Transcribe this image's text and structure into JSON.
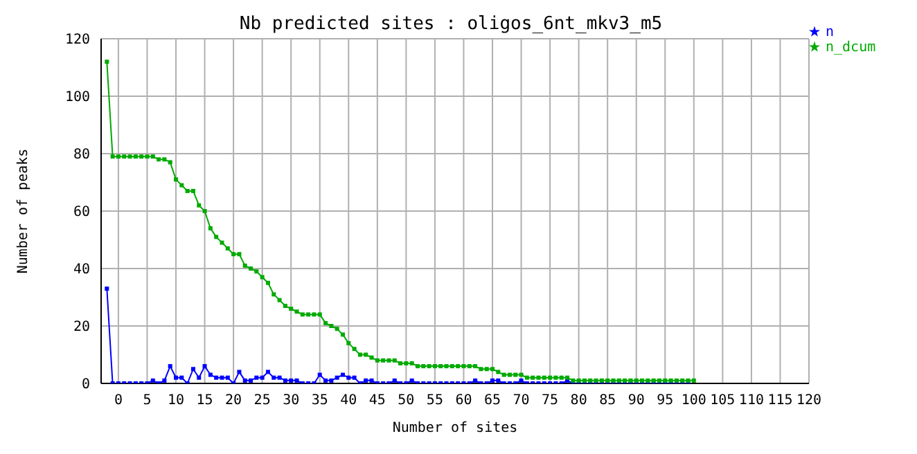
{
  "chart_data": {
    "type": "line",
    "title": "Nb predicted sites : oligos_6nt_mkv3_m5",
    "xlabel": "Number of sites",
    "ylabel": "Number of peaks",
    "x": [
      -2,
      -1,
      0,
      1,
      2,
      3,
      4,
      5,
      6,
      7,
      8,
      9,
      10,
      11,
      12,
      13,
      14,
      15,
      16,
      17,
      18,
      19,
      20,
      21,
      22,
      23,
      24,
      25,
      26,
      27,
      28,
      29,
      30,
      31,
      32,
      33,
      34,
      35,
      36,
      37,
      38,
      39,
      40,
      41,
      42,
      43,
      44,
      45,
      46,
      47,
      48,
      49,
      50,
      51,
      52,
      53,
      54,
      55,
      56,
      57,
      58,
      59,
      60,
      61,
      62,
      63,
      64,
      65,
      66,
      67,
      68,
      69,
      70,
      71,
      72,
      73,
      74,
      75,
      76,
      77,
      78,
      79,
      80,
      81,
      82,
      83,
      84,
      85,
      86,
      87,
      88,
      89,
      90,
      91,
      92,
      93,
      94,
      95,
      96,
      97,
      98,
      99,
      100
    ],
    "series": [
      {
        "name": "n",
        "color": "#0000ff",
        "values": [
          33,
          0,
          0,
          0,
          0,
          0,
          0,
          0,
          1,
          0,
          1,
          6,
          2,
          2,
          0,
          5,
          2,
          6,
          3,
          2,
          2,
          2,
          0,
          4,
          1,
          1,
          2,
          2,
          4,
          2,
          2,
          1,
          1,
          1,
          0,
          0,
          0,
          3,
          1,
          1,
          2,
          3,
          2,
          2,
          0,
          1,
          1,
          0,
          0,
          0,
          1,
          0,
          0,
          1,
          0,
          0,
          0,
          0,
          0,
          0,
          0,
          0,
          0,
          0,
          1,
          0,
          0,
          1,
          1,
          0,
          0,
          0,
          1,
          0,
          0,
          0,
          0,
          0,
          0,
          0,
          1,
          0,
          0,
          0,
          0,
          0,
          0,
          0,
          0,
          0,
          0,
          0,
          0,
          0,
          0,
          0,
          0,
          0,
          0,
          0,
          0,
          0,
          null
        ]
      },
      {
        "name": "n_dcum",
        "color": "#00aa00",
        "values": [
          112,
          79,
          79,
          79,
          79,
          79,
          79,
          79,
          79,
          78,
          78,
          77,
          71,
          69,
          67,
          67,
          62,
          60,
          54,
          51,
          49,
          47,
          45,
          45,
          41,
          40,
          39,
          37,
          35,
          31,
          29,
          27,
          26,
          25,
          24,
          24,
          24,
          24,
          21,
          20,
          19,
          17,
          14,
          12,
          10,
          10,
          9,
          8,
          8,
          8,
          8,
          7,
          7,
          7,
          6,
          6,
          6,
          6,
          6,
          6,
          6,
          6,
          6,
          6,
          6,
          5,
          5,
          5,
          4,
          3,
          3,
          3,
          3,
          2,
          2,
          2,
          2,
          2,
          2,
          2,
          2,
          1,
          1,
          1,
          1,
          1,
          1,
          1,
          1,
          1,
          1,
          1,
          1,
          1,
          1,
          1,
          1,
          1,
          1,
          1,
          1,
          1,
          1
        ]
      }
    ],
    "xlim": [
      -3,
      120
    ],
    "xticks": [
      0,
      5,
      10,
      15,
      20,
      25,
      30,
      35,
      40,
      45,
      50,
      55,
      60,
      65,
      70,
      75,
      80,
      85,
      90,
      95,
      100,
      105,
      110,
      115,
      120
    ],
    "ylim": [
      0,
      120
    ],
    "yticks": [
      0,
      20,
      40,
      60,
      80,
      100,
      120
    ],
    "grid": true,
    "legend": "top right",
    "marker": "square",
    "line_style": "solid"
  }
}
